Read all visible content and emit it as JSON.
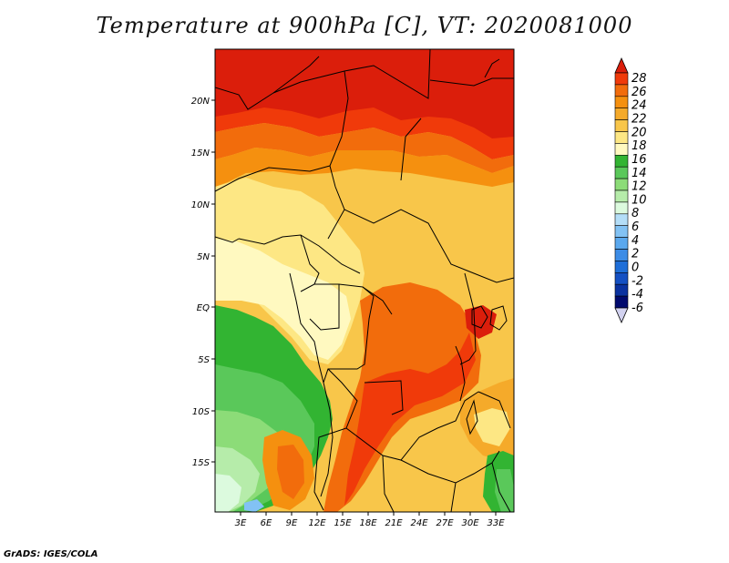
{
  "title": "Temperature at 900hPa [C], VT: 2020081000",
  "footer": "GrADS: IGES/COLA",
  "lat_ticks": [
    "20N",
    "15N",
    "10N",
    "5N",
    "EQ",
    "5S",
    "10S",
    "15S"
  ],
  "lon_ticks": [
    "3E",
    "6E",
    "9E",
    "12E",
    "15E",
    "18E",
    "21E",
    "24E",
    "27E",
    "30E",
    "33E"
  ],
  "colorbar": {
    "labels": [
      "28",
      "26",
      "24",
      "22",
      "20",
      "18",
      "16",
      "14",
      "12",
      "10",
      "8",
      "6",
      "4",
      "2",
      "0",
      "-2",
      "-4",
      "-6"
    ],
    "colors": [
      "#db1e0b",
      "#f03a0a",
      "#f26c0c",
      "#f5900f",
      "#f5aa2a",
      "#f8c64a",
      "#fde784",
      "#fff9c0",
      "#32b432",
      "#5ac85a",
      "#8cdc78",
      "#b6ecaa",
      "#dcfade",
      "#b4def8",
      "#82c2f4",
      "#5aa8ee",
      "#3c8ce6",
      "#1e6ed8",
      "#1450c3",
      "#0a32a0",
      "#000a6e",
      "#d2d2f0"
    ]
  }
}
